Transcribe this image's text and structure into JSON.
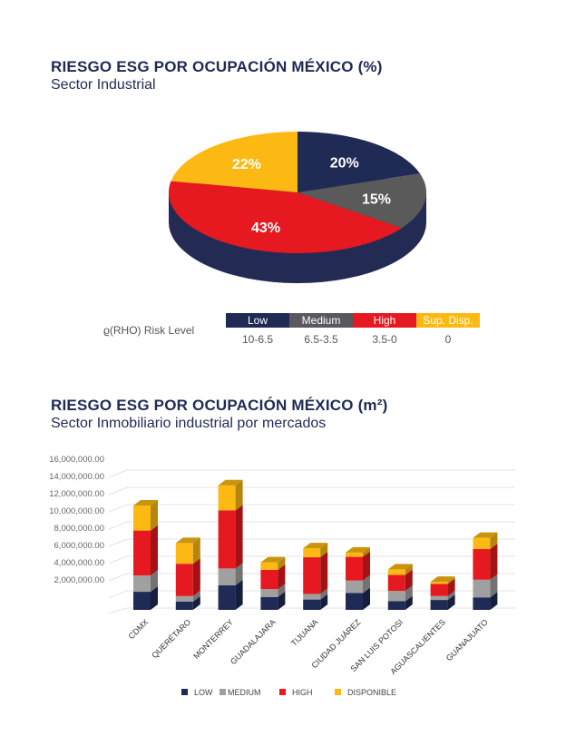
{
  "pie_section": {
    "title": "RIESGO ESG POR OCUPACIÓN MÉXICO (%)",
    "subtitle": "Sector Industrial"
  },
  "risk_legend": {
    "label": "ϱ(RHO) Risk Level",
    "levels": [
      {
        "name": "Low",
        "range": "10-6.5",
        "color": "#1f2a55",
        "text_color": "#ffffff"
      },
      {
        "name": "Medium",
        "range": "6.5-3.5",
        "color": "#5a5760",
        "text_color": "#ffffff"
      },
      {
        "name": "High",
        "range": "3.5-0",
        "color": "#e5191f",
        "text_color": "#ffffff"
      },
      {
        "name": "Sup. Disp.",
        "range": "0",
        "color": "#fdb913",
        "text_color": "#ffffff"
      }
    ]
  },
  "bar_section": {
    "title": "RIESGO ESG POR OCUPACIÓN MÉXICO (m²)",
    "subtitle": "Sector Inmobiliario industrial por mercados"
  },
  "chart_data": [
    {
      "type": "pie",
      "style": "3d",
      "slices": [
        {
          "label": "20%",
          "value": 20,
          "color": "#1f2a55"
        },
        {
          "label": "15%",
          "value": 15,
          "color": "#5a5a5a"
        },
        {
          "label": "43%",
          "value": 43,
          "color": "#e5191f"
        },
        {
          "label": "22%",
          "value": 22,
          "color": "#fdb913"
        }
      ]
    },
    {
      "type": "bar",
      "stacked": true,
      "style": "3d",
      "categories": [
        "CDMX",
        "QUERÉTARO",
        "MONTERREY",
        "GUADALAJARA",
        "TIJUANA",
        "CIUDAD JUÁREZ",
        "SAN LUIS POTOSI",
        "AGUASCALIENTES",
        "GUANAJUATO"
      ],
      "series": [
        {
          "name": "LOW",
          "color": "#1f2a55",
          "values": [
            2100000,
            950000,
            2850000,
            1500000,
            1200000,
            1950000,
            1000000,
            1150000,
            1450000
          ]
        },
        {
          "name": "MEDIUM",
          "color": "#a0a0a0",
          "values": [
            1900000,
            650000,
            1950000,
            900000,
            650000,
            1450000,
            1200000,
            450000,
            2050000
          ]
        },
        {
          "name": "HIGH",
          "color": "#e5191f",
          "values": [
            5200000,
            3750000,
            6750000,
            2250000,
            4250000,
            2750000,
            1850000,
            1400000,
            3550000
          ]
        },
        {
          "name": "DISPONIBLE",
          "color": "#fdb913",
          "values": [
            2900000,
            2400000,
            2900000,
            850000,
            1050000,
            500000,
            650000,
            250000,
            1300000
          ]
        }
      ],
      "ylim": [
        0,
        16000000
      ],
      "yticks": [
        "2,000,000.00",
        "4,000,000.00",
        "6,000,000.00",
        "8,000,000.00",
        "10,000,000.00",
        "12,000,000.00",
        "14,000,000.00",
        "16,000,000.00"
      ],
      "grid": true,
      "legend_position": "bottom"
    }
  ]
}
